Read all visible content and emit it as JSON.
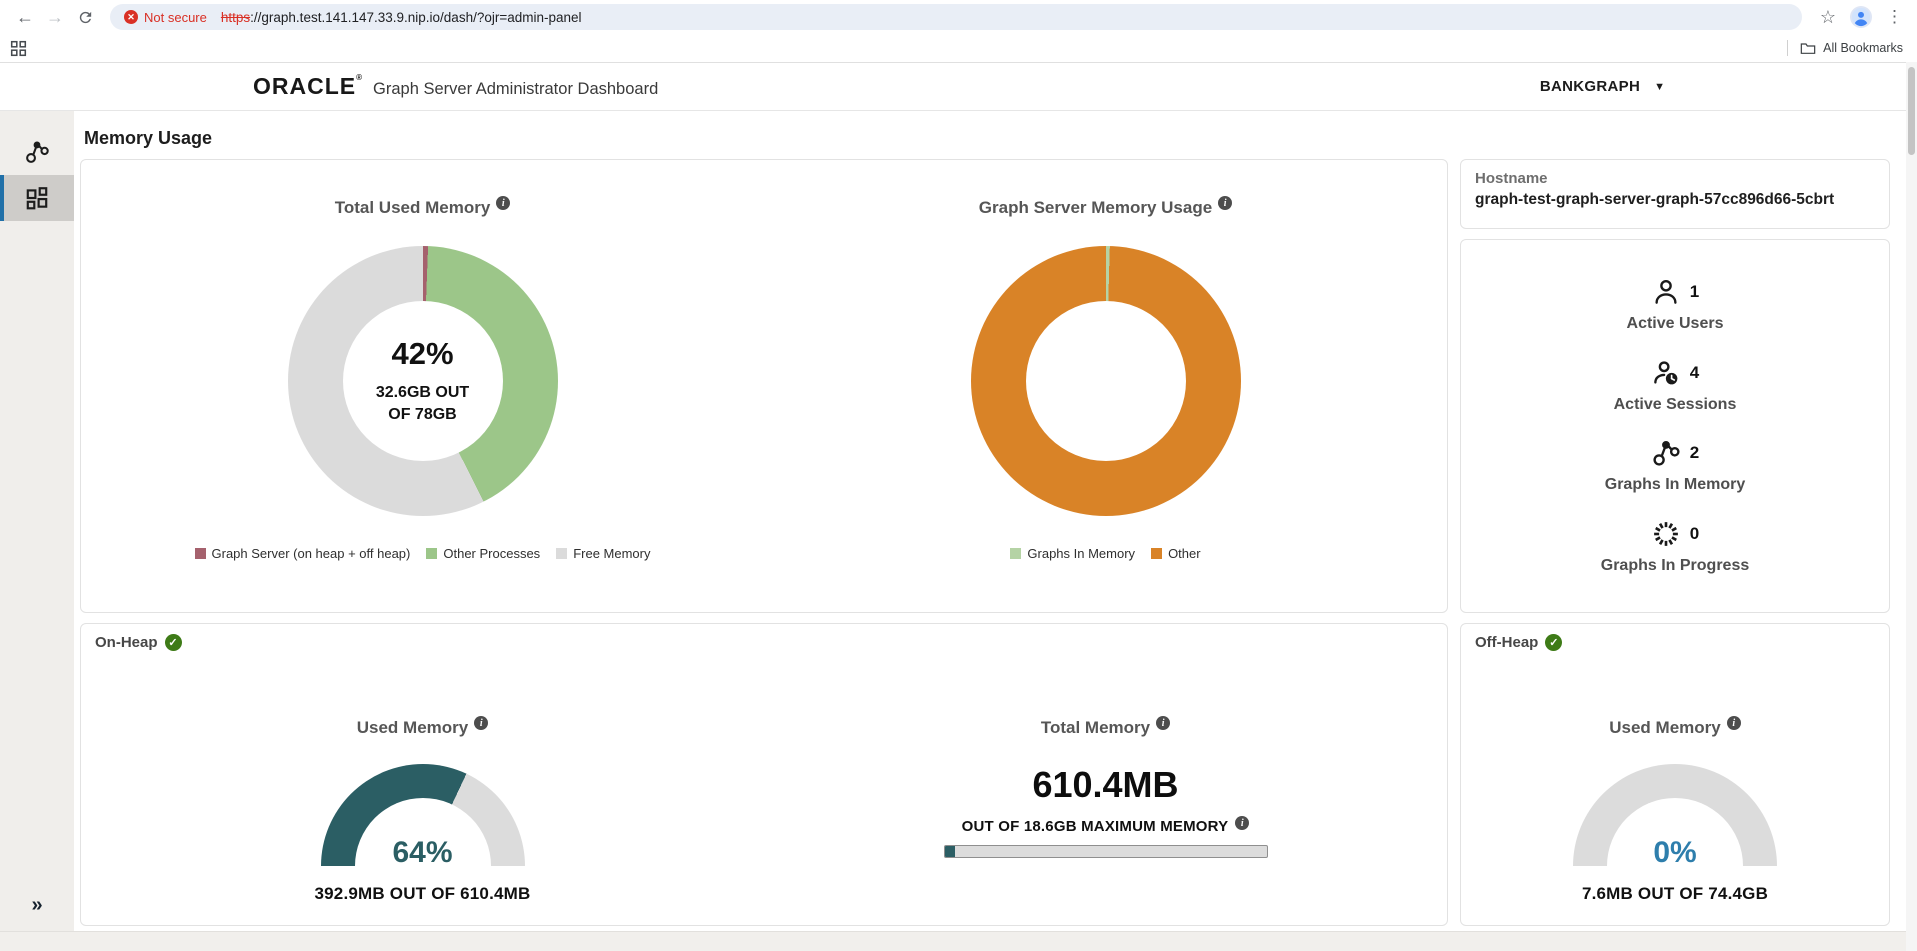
{
  "browser": {
    "security_badge": "Not secure",
    "url_scheme": "https",
    "url_rest": "://graph.test.141.147.33.9.nip.io/dash/?ojr=admin-panel",
    "all_bookmarks": "All Bookmarks"
  },
  "header": {
    "brand": "ORACLE",
    "title": "Graph Server Administrator Dashboard",
    "graph_selector_value": "BANKGRAPH"
  },
  "page_heading": "Memory Usage",
  "host_panel": {
    "hostname_label": "Hostname",
    "hostname_value": "graph-test-graph-server-graph-57cc896d66-5cbrt",
    "stats": [
      {
        "icon": "user-icon",
        "value": "1",
        "label": "Active Users"
      },
      {
        "icon": "user-clock-icon",
        "value": "4",
        "label": "Active Sessions"
      },
      {
        "icon": "graph-icon",
        "value": "2",
        "label": "Graphs In Memory"
      },
      {
        "icon": "spinner-icon",
        "value": "0",
        "label": "Graphs In Progress"
      }
    ]
  },
  "onheap_title": "On-Heap",
  "offheap_title": "Off-Heap",
  "sidebar_expand_glyph": "»",
  "colors": {
    "teal": "#2b5e64",
    "orange": "#d98327",
    "green": "#9cc689",
    "maroon": "#a5616d",
    "gauge_track": "#dcdcdc",
    "accent_blue": "#2170a8",
    "danger_red": "#d93025",
    "check_green": "#3e7b17"
  },
  "chart_data": [
    {
      "id": "total_used_memory_donut",
      "type": "pie",
      "title": "Total Used Memory",
      "center_label": "42%",
      "center_sub_line1": "32.6GB OUT",
      "center_sub_line2": "OF 78GB",
      "slices": [
        {
          "label": "Graph Server (on heap + off heap)",
          "value": 0.6,
          "color": "#a5616d"
        },
        {
          "label": "Other Processes",
          "value": 42.0,
          "color": "#9cc689"
        },
        {
          "label": "Free Memory",
          "value": 57.4,
          "color": "#dbdbdb"
        }
      ],
      "legend_position": "bottom"
    },
    {
      "id": "graph_server_memory_donut",
      "type": "pie",
      "title": "Graph Server Memory Usage",
      "slices": [
        {
          "label": "Graphs In Memory",
          "value": 0.45,
          "color": "#b5d3a5"
        },
        {
          "label": "Other",
          "value": 99.55,
          "color": "#d98327"
        }
      ],
      "legend_position": "bottom"
    },
    {
      "id": "onheap_used_gauge",
      "type": "gauge",
      "title": "Used Memory",
      "percent": 64,
      "value_label": "64%",
      "value_color": "#2b5e64",
      "fill_color": "#2b5e64",
      "track_color": "#dcdcdc",
      "caption": "392.9MB OUT OF 610.4MB"
    },
    {
      "id": "total_memory_progress",
      "type": "bar",
      "title": "Total Memory",
      "value_label": "610.4MB",
      "caption": "OUT OF 18.6GB MAXIMUM MEMORY",
      "percent": 3.3,
      "fill_color": "#2b5e64"
    },
    {
      "id": "offheap_used_gauge",
      "type": "gauge",
      "title": "Used Memory",
      "percent": 0,
      "value_label": "0%",
      "value_color": "#2e7eac",
      "fill_color": "#2e7eac",
      "track_color": "#dcdcdc",
      "caption": "7.6MB OUT OF 74.4GB"
    }
  ]
}
